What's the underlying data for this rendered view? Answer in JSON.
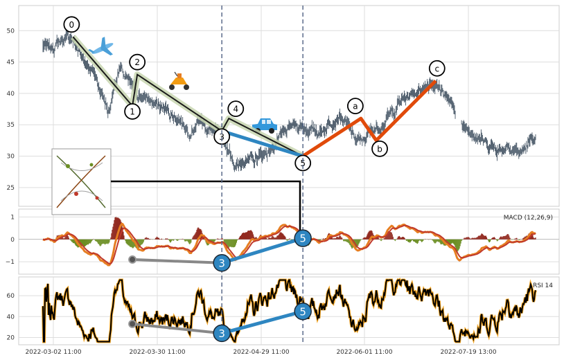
{
  "chart_data": {
    "type": "line",
    "x_tick_labels": [
      "2022-03-02 11:00",
      "2022-03-30 11:00",
      "2022-04-29 11:00",
      "2022-06-01 11:00",
      "2022-07-19 13:00"
    ],
    "panels": [
      {
        "name": "price",
        "chart_type": "ohlc",
        "ylim": [
          22,
          54
        ],
        "yticks": [
          25,
          30,
          35,
          40,
          45,
          50
        ],
        "grid": true,
        "approx_series": [
          [
            0,
            47.5
          ],
          [
            10,
            47
          ],
          [
            25,
            48.5
          ],
          [
            40,
            49
          ],
          [
            55,
            46
          ],
          [
            70,
            44
          ],
          [
            85,
            40
          ],
          [
            95,
            37
          ],
          [
            103,
            42
          ],
          [
            110,
            44
          ],
          [
            120,
            42
          ],
          [
            135,
            40
          ],
          [
            150,
            39
          ],
          [
            165,
            38
          ],
          [
            180,
            37
          ],
          [
            195,
            36
          ],
          [
            210,
            34
          ],
          [
            225,
            36
          ],
          [
            240,
            34
          ],
          [
            255,
            33
          ],
          [
            270,
            30
          ],
          [
            280,
            28
          ],
          [
            290,
            30
          ],
          [
            300,
            29
          ],
          [
            310,
            30
          ],
          [
            325,
            31
          ],
          [
            340,
            33
          ],
          [
            355,
            34.5
          ],
          [
            370,
            35
          ],
          [
            385,
            34
          ],
          [
            400,
            34
          ],
          [
            415,
            36
          ],
          [
            425,
            36.5
          ],
          [
            435,
            35
          ],
          [
            445,
            33
          ],
          [
            455,
            32
          ],
          [
            470,
            34
          ],
          [
            485,
            35
          ],
          [
            500,
            37
          ],
          [
            515,
            39
          ],
          [
            530,
            40
          ],
          [
            545,
            41
          ],
          [
            555,
            42
          ],
          [
            565,
            41
          ],
          [
            575,
            40
          ],
          [
            585,
            38
          ],
          [
            595,
            35
          ],
          [
            605,
            34.5
          ],
          [
            615,
            34
          ],
          [
            625,
            33
          ],
          [
            635,
            32
          ],
          [
            645,
            31.5
          ],
          [
            655,
            31
          ],
          [
            665,
            32
          ],
          [
            675,
            31
          ],
          [
            685,
            30.5
          ],
          [
            695,
            32
          ],
          [
            705,
            33
          ]
        ],
        "elliott_wave": {
          "impulse_labels": [
            "0",
            "1",
            "2",
            "3",
            "4",
            "5"
          ],
          "impulse_points": [
            [
              43,
              49
            ],
            [
              128,
              38
            ],
            [
              135,
              43
            ],
            [
              256,
              34
            ],
            [
              266,
              36
            ],
            [
              372,
              30
            ]
          ],
          "correction_labels": [
            "a",
            "b",
            "c"
          ],
          "correction_points": [
            [
              372,
              30
            ],
            [
              455,
              36
            ],
            [
              477,
              32.5
            ],
            [
              562,
              42
            ]
          ]
        }
      },
      {
        "name": "macd",
        "label": "MACD (12,26,9)",
        "ylim": [
          -1.55,
          1.35
        ],
        "yticks": [
          -1,
          0,
          1
        ],
        "grid": true,
        "divergence": {
          "previous_point": [
            128,
            -0.9
          ],
          "wave3_point": [
            256,
            -1.05
          ],
          "wave5_point": [
            372,
            0.05
          ],
          "labels": [
            "3",
            "5"
          ]
        }
      },
      {
        "name": "rsi",
        "label": "RSI 14",
        "ylim": [
          13,
          78
        ],
        "yticks": [
          20,
          40,
          60
        ],
        "grid": true,
        "divergence": {
          "previous_point": [
            128,
            33
          ],
          "wave3_point": [
            256,
            24
          ],
          "wave5_point": [
            372,
            45
          ],
          "labels": [
            "3",
            "5"
          ]
        }
      }
    ],
    "vertical_markers_x": [
      256,
      372
    ],
    "colors": {
      "ohlc": "#2c3e50",
      "impulse_channel": "#c8d6b0",
      "impulse_line": "#1a1a1a",
      "wave_3_5": "#2e86c1",
      "correction": "#e04a0a",
      "macd": "#e67e22",
      "signal": "#c0392b",
      "hist_pos": "#922b21",
      "hist_neg": "#6b8e23",
      "rsi_outer": "#f5a623",
      "rsi_inner": "#000000",
      "divergence_gray": "#888888",
      "marker_fill": "#2e86c1",
      "marker_line": "#5a6a8a"
    }
  }
}
